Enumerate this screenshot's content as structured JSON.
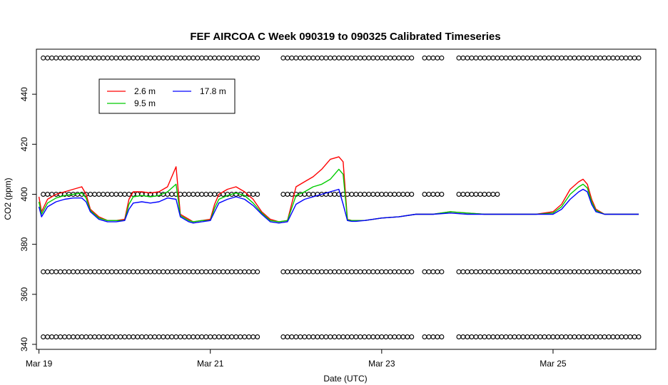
{
  "chart_data": {
    "type": "line",
    "title": "FEF AIRCOA C  Week 090319 to 090325  Calibrated Timeseries",
    "xlabel": "Date (UTC)",
    "ylabel": "CO2 (ppm)",
    "xlim": [
      -0.03,
      7.2
    ],
    "ylim": [
      338,
      458
    ],
    "x_ticks": [
      {
        "x": 0,
        "label": "Mar 19"
      },
      {
        "x": 2,
        "label": "Mar 21"
      },
      {
        "x": 4,
        "label": "Mar 23"
      },
      {
        "x": 6,
        "label": "Mar 25"
      }
    ],
    "y_ticks": [
      {
        "y": 340,
        "label": "340"
      },
      {
        "y": 360,
        "label": "360"
      },
      {
        "y": 380,
        "label": "380"
      },
      {
        "y": 400,
        "label": "400"
      },
      {
        "y": 420,
        "label": "420"
      },
      {
        "y": 440,
        "label": "440"
      }
    ],
    "legend": {
      "placement": "top-left",
      "entries": [
        {
          "name": "2.6 m",
          "color": "#ff0000"
        },
        {
          "name": "9.5 m",
          "color": "#00cc00"
        },
        {
          "name": "17.8 m",
          "color": "#0000ff"
        }
      ]
    },
    "series": [
      {
        "name": "2.6 m",
        "color": "#ff0000",
        "x": [
          0,
          0.03,
          0.1,
          0.2,
          0.3,
          0.4,
          0.5,
          0.55,
          0.6,
          0.7,
          0.8,
          0.9,
          1.0,
          1.05,
          1.1,
          1.2,
          1.3,
          1.4,
          1.5,
          1.6,
          1.65,
          1.7,
          1.75,
          1.8,
          1.9,
          2.0,
          2.05,
          2.1,
          2.2,
          2.3,
          2.4,
          2.5,
          2.6,
          2.7,
          2.8,
          2.9,
          3.0,
          3.1,
          3.2,
          3.3,
          3.4,
          3.5,
          3.55,
          3.6,
          3.65,
          3.7,
          3.8,
          3.9,
          4.0,
          4.2,
          4.4,
          4.6,
          4.8,
          5.0,
          5.2,
          5.4,
          5.6,
          5.8,
          6.0,
          6.1,
          6.2,
          6.3,
          6.35,
          6.4,
          6.45,
          6.5,
          6.6,
          6.8,
          7.0
        ],
        "y": [
          399,
          393,
          398,
          400,
          401,
          402,
          403,
          400,
          394,
          391,
          389.5,
          389.5,
          390,
          398,
          401,
          401,
          400.5,
          401,
          403,
          411,
          392,
          391,
          390,
          389,
          389.5,
          390,
          396,
          400,
          402,
          403,
          401,
          398,
          393,
          390,
          389,
          389.5,
          403,
          405,
          407,
          410,
          414,
          415,
          413,
          390,
          389.5,
          389.5,
          389.5,
          390,
          390.5,
          391,
          392,
          392,
          393,
          392.5,
          392,
          392,
          392,
          392,
          393,
          396,
          402,
          405,
          406,
          404,
          398,
          394,
          392,
          392,
          392
        ]
      },
      {
        "name": "9.5 m",
        "color": "#00cc00",
        "x": [
          0,
          0.03,
          0.1,
          0.2,
          0.3,
          0.4,
          0.5,
          0.55,
          0.6,
          0.7,
          0.8,
          0.9,
          1.0,
          1.05,
          1.1,
          1.2,
          1.3,
          1.4,
          1.5,
          1.6,
          1.65,
          1.7,
          1.75,
          1.8,
          1.9,
          2.0,
          2.05,
          2.1,
          2.2,
          2.3,
          2.4,
          2.5,
          2.6,
          2.7,
          2.8,
          2.9,
          3.0,
          3.1,
          3.2,
          3.3,
          3.4,
          3.5,
          3.55,
          3.6,
          3.65,
          3.7,
          3.8,
          3.9,
          4.0,
          4.2,
          4.4,
          4.6,
          4.8,
          5.0,
          5.2,
          5.4,
          5.6,
          5.8,
          6.0,
          6.1,
          6.2,
          6.3,
          6.35,
          6.4,
          6.45,
          6.5,
          6.6,
          6.8,
          7.0
        ],
        "y": [
          397,
          392,
          396.5,
          398.5,
          399.5,
          400,
          400.5,
          398.5,
          393.5,
          390.5,
          389.5,
          389.5,
          389.5,
          396,
          399,
          399.5,
          399,
          399.5,
          401,
          404,
          391.5,
          390.5,
          389.5,
          389,
          389.5,
          389.5,
          394.5,
          398,
          399.5,
          400.5,
          399.5,
          396.5,
          392.5,
          389.5,
          389,
          389.5,
          399.5,
          401,
          403,
          404,
          406,
          410,
          408,
          389.8,
          389.5,
          389.5,
          389.5,
          390,
          390.5,
          391,
          392,
          392,
          393,
          392.5,
          392,
          392,
          392,
          392,
          392.5,
          395,
          400,
          403,
          404,
          402.5,
          397,
          393.5,
          392,
          392,
          392
        ]
      },
      {
        "name": "17.8 m",
        "color": "#0000ff",
        "x": [
          0,
          0.03,
          0.1,
          0.2,
          0.3,
          0.4,
          0.5,
          0.55,
          0.6,
          0.7,
          0.8,
          0.9,
          1.0,
          1.05,
          1.1,
          1.2,
          1.3,
          1.4,
          1.5,
          1.6,
          1.65,
          1.7,
          1.75,
          1.8,
          1.9,
          2.0,
          2.05,
          2.1,
          2.2,
          2.3,
          2.4,
          2.5,
          2.6,
          2.7,
          2.8,
          2.9,
          3.0,
          3.1,
          3.2,
          3.3,
          3.4,
          3.5,
          3.55,
          3.6,
          3.65,
          3.7,
          3.8,
          3.9,
          4.0,
          4.2,
          4.4,
          4.6,
          4.8,
          5.0,
          5.2,
          5.4,
          5.6,
          5.8,
          6.0,
          6.1,
          6.2,
          6.3,
          6.35,
          6.4,
          6.45,
          6.5,
          6.6,
          6.8,
          7.0
        ],
        "y": [
          395,
          391,
          395,
          397,
          398,
          398.5,
          398.5,
          397,
          393,
          390,
          389,
          389,
          389.5,
          394,
          396.5,
          397,
          396.5,
          397,
          398.5,
          398,
          391,
          390,
          389,
          388.5,
          389,
          389.5,
          393,
          396.5,
          398,
          399,
          398,
          395.5,
          392,
          389,
          388.5,
          389,
          396,
          398,
          399,
          400,
          401,
          402,
          396,
          389.5,
          389.2,
          389.2,
          389.5,
          390,
          390.5,
          391,
          392,
          392,
          392.5,
          392,
          392,
          392,
          392,
          392,
          392,
          394,
          398,
          401,
          402,
          401,
          396,
          393,
          392,
          392,
          392
        ]
      }
    ],
    "flag_rows": {
      "note_type": "calibration markers",
      "rows": [
        {
          "y": 454.5,
          "x_start": 0.05,
          "x_end": 7.0,
          "gaps": [
            [
              2.55,
              2.8
            ],
            [
              4.35,
              4.45
            ],
            [
              4.7,
              4.85
            ]
          ]
        },
        {
          "y": 400,
          "x_start": 0.05,
          "x_end": 5.35,
          "gaps": [
            [
              2.55,
              2.8
            ],
            [
              4.35,
              4.45
            ],
            [
              4.7,
              4.85
            ]
          ]
        },
        {
          "y": 369,
          "x_start": 0.05,
          "x_end": 7.0,
          "gaps": [
            [
              2.55,
              2.8
            ],
            [
              4.35,
              4.45
            ],
            [
              4.7,
              4.85
            ]
          ]
        },
        {
          "y": 343,
          "x_start": 0.05,
          "x_end": 7.0,
          "gaps": [
            [
              2.55,
              2.8
            ],
            [
              4.35,
              4.45
            ],
            [
              4.7,
              4.85
            ]
          ]
        }
      ]
    }
  }
}
